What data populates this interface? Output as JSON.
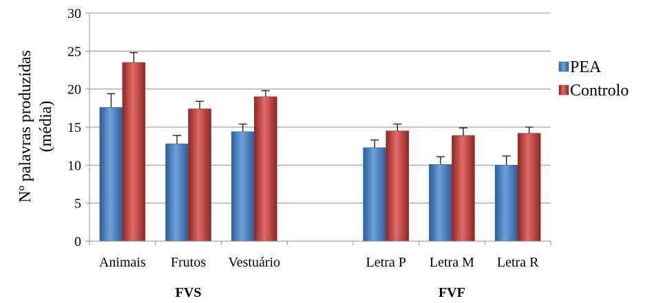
{
  "chart_data": {
    "type": "bar",
    "ylabel_lines": [
      "Nº palavras produzidas",
      "(média)"
    ],
    "ylim": [
      0,
      30
    ],
    "yticks": [
      0,
      5,
      10,
      15,
      20,
      25,
      30
    ],
    "grid": true,
    "legend_position": "right",
    "categories": [
      "Animais",
      "Frutos",
      "Vestuário",
      "Letra P",
      "Letra M",
      "Letra R"
    ],
    "groups": [
      {
        "label": "FVS",
        "categories": [
          "Animais",
          "Frutos",
          "Vestuário"
        ]
      },
      {
        "label": "FVF",
        "categories": [
          "Letra P",
          "Letra M",
          "Letra R"
        ]
      }
    ],
    "series": [
      {
        "name": "PEA",
        "color": "#4f81bd",
        "values": [
          17.6,
          12.8,
          14.4,
          12.3,
          10.1,
          10.0
        ],
        "error": [
          1.8,
          1.1,
          1.0,
          1.0,
          1.0,
          1.2
        ]
      },
      {
        "name": "Controlo",
        "color": "#c0504d",
        "values": [
          23.5,
          17.4,
          19.0,
          14.5,
          13.9,
          14.2
        ],
        "error": [
          1.3,
          1.0,
          0.8,
          0.9,
          1.0,
          0.8
        ]
      }
    ]
  }
}
